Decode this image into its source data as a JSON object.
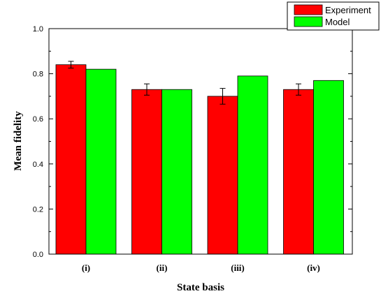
{
  "chart_data": {
    "type": "bar",
    "categories": [
      "(i)",
      "(ii)",
      "(iii)",
      "(iv)"
    ],
    "series": [
      {
        "name": "Experiment",
        "color": "#ff0000",
        "values": [
          0.84,
          0.73,
          0.7,
          0.73
        ],
        "errors": [
          0.015,
          0.025,
          0.035,
          0.025
        ]
      },
      {
        "name": "Model",
        "color": "#00ff00",
        "values": [
          0.82,
          0.73,
          0.79,
          0.77
        ]
      }
    ],
    "xlabel": "State basis",
    "ylabel": "Mean fidelity",
    "ylim": [
      0.0,
      1.0
    ],
    "yticks": [
      "0.0",
      "0.2",
      "0.4",
      "0.6",
      "0.8",
      "1.0"
    ],
    "legend_position": "top-right",
    "grid": false
  }
}
